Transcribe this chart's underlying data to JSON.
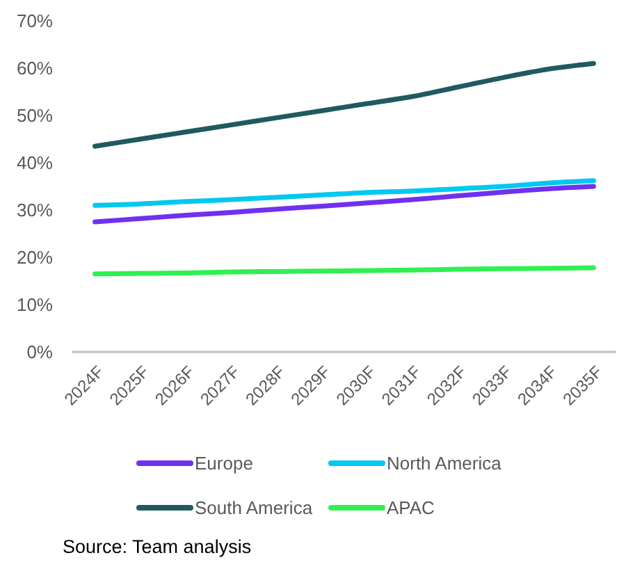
{
  "chart_data": {
    "type": "line",
    "categories": [
      "2024F",
      "2025F",
      "2026F",
      "2027F",
      "2028F",
      "2029F",
      "2030F",
      "2031F",
      "2032F",
      "2033F",
      "2034F",
      "2035F"
    ],
    "series": [
      {
        "name": "Europe",
        "color": "#7030f0",
        "values": [
          27.5,
          28.2,
          28.9,
          29.5,
          30.2,
          30.8,
          31.5,
          32.2,
          33,
          33.8,
          34.5,
          35
        ]
      },
      {
        "name": "North America",
        "color": "#00c8f0",
        "values": [
          31,
          31.3,
          31.8,
          32.2,
          32.7,
          33.2,
          33.7,
          34,
          34.5,
          35,
          35.7,
          36.2
        ]
      },
      {
        "name": "South America",
        "color": "#1f5a60",
        "values": [
          43.5,
          45,
          46.5,
          48,
          49.5,
          51,
          52.5,
          54,
          56,
          58,
          59.8,
          61
        ]
      },
      {
        "name": "APAC",
        "color": "#30f050",
        "values": [
          16.5,
          16.6,
          16.7,
          16.9,
          17,
          17.1,
          17.2,
          17.3,
          17.5,
          17.6,
          17.7,
          17.8
        ]
      }
    ],
    "ylim": [
      0,
      70
    ],
    "yticks": [
      {
        "value": 0,
        "label": "0%"
      },
      {
        "value": 10,
        "label": "10%"
      },
      {
        "value": 20,
        "label": "20%"
      },
      {
        "value": 30,
        "label": "30%"
      },
      {
        "value": 40,
        "label": "40%"
      },
      {
        "value": 50,
        "label": "50%"
      },
      {
        "value": 60,
        "label": "60%"
      },
      {
        "value": 70,
        "label": "70%"
      }
    ],
    "grid": false,
    "legend": "bottom",
    "marker": "none",
    "line_style": "solid",
    "annotations": [
      "Source: Team analysis"
    ]
  }
}
